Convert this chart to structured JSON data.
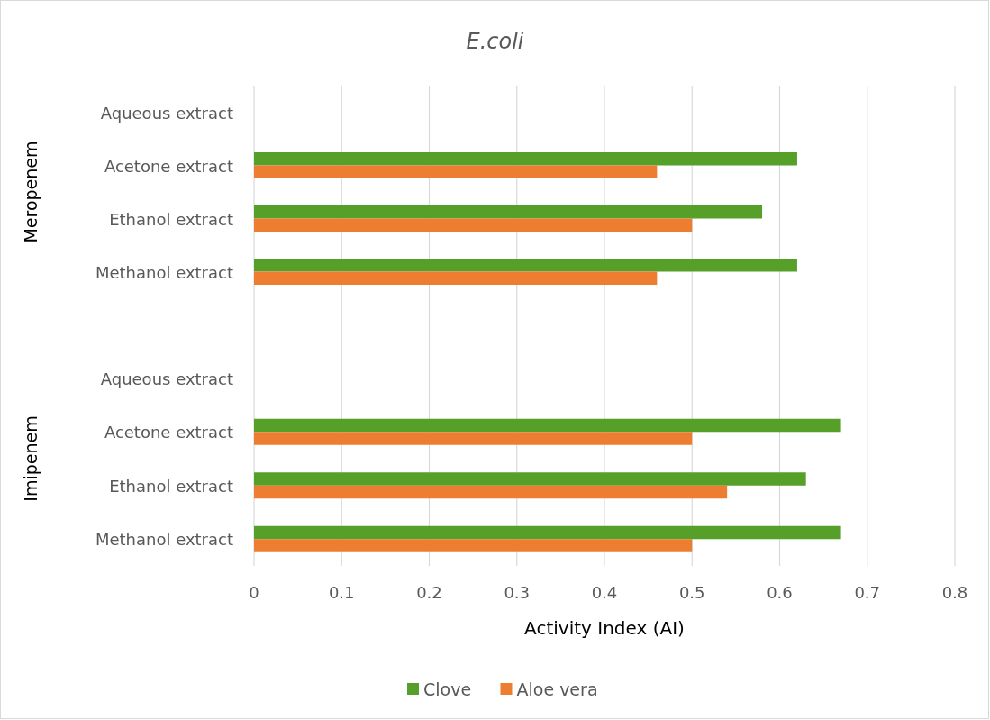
{
  "chart_data": [
    {
      "type": "bar",
      "orientation": "horizontal",
      "title": "E.coli",
      "ylabel": "Meropenem",
      "categories": [
        "Aqueous extract",
        "Acetone extract",
        "Ethanol extract",
        "Methanol extract"
      ],
      "series": [
        {
          "color": "#56a02a",
          "values": [
            null,
            0.62,
            0.58,
            0.62
          ]
        },
        {
          "color": "#ed7d31",
          "values": [
            null,
            0.46,
            0.5,
            0.46
          ]
        }
      ],
      "xlim": [
        0,
        0.8
      ],
      "xticks": [
        0,
        0.1,
        0.2,
        0.3,
        0.4,
        0.5,
        0.6,
        0.7,
        0.8
      ],
      "grid": "x",
      "tick_labels": "y"
    },
    {
      "type": "bar",
      "orientation": "horizontal",
      "ylabel": "Imipenem",
      "xlabel": "Activity Index (AI)",
      "categories": [
        "Aqueous extract",
        "Acetone extract",
        "Ethanol extract",
        "Methanol extract"
      ],
      "series": [
        {
          "name": "Clove",
          "color": "#56a02a",
          "values": [
            null,
            0.67,
            0.63,
            0.67
          ]
        },
        {
          "name": "Aloe vera",
          "color": "#ed7d31",
          "values": [
            null,
            0.5,
            0.54,
            0.5
          ]
        }
      ],
      "xlim": [
        0,
        0.8
      ],
      "xticks": [
        0,
        0.1,
        0.2,
        0.3,
        0.4,
        0.5,
        0.6,
        0.7,
        0.8
      ],
      "grid": "x",
      "legend": "bottom"
    }
  ]
}
